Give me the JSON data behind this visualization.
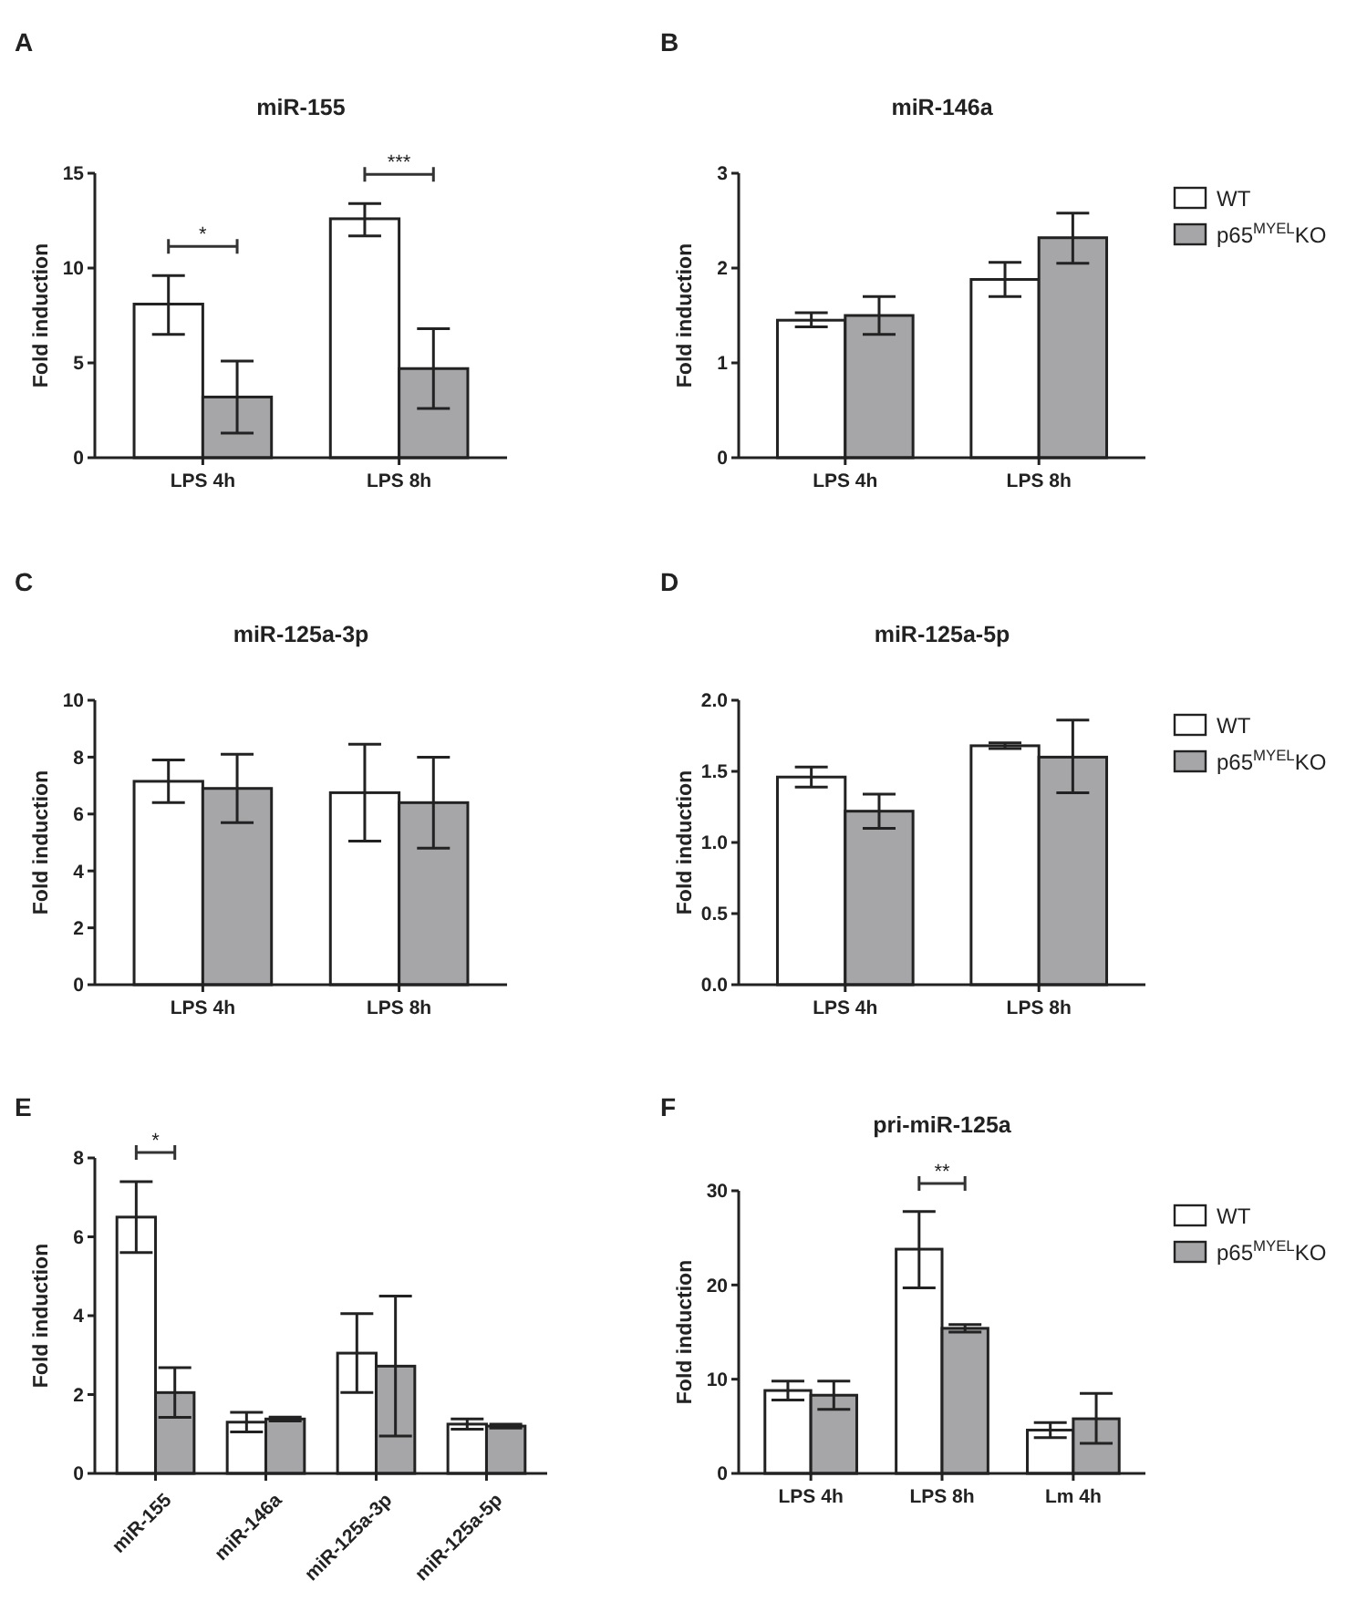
{
  "chart_data": [
    {
      "type": "bar",
      "title": "miR-155",
      "ylabel": "Fold induction",
      "categories": [
        "LPS 4h",
        "LPS 8h"
      ],
      "ylim": [
        0,
        15
      ],
      "yticks": [
        0,
        5,
        10,
        15
      ],
      "legend": false,
      "series": [
        {
          "color": "#ffffff",
          "values": [
            8.1,
            12.6
          ],
          "errors": [
            [
              6.5,
              9.6
            ],
            [
              11.7,
              13.4
            ]
          ]
        },
        {
          "color": "#a6a6a9",
          "values": [
            3.2,
            4.7
          ],
          "errors": [
            [
              1.3,
              5.1
            ],
            [
              2.6,
              6.8
            ]
          ]
        }
      ],
      "annotations": [
        "A",
        "*",
        "***"
      ]
    },
    {
      "type": "bar",
      "title": "miR-146a",
      "ylabel": "Fold induction",
      "categories": [
        "LPS 4h",
        "LPS 8h"
      ],
      "ylim": [
        0,
        3
      ],
      "yticks": [
        0,
        1,
        2,
        3
      ],
      "legend": "right",
      "series": [
        {
          "name": "WT",
          "color": "#ffffff",
          "values": [
            1.45,
            1.88
          ],
          "errors": [
            [
              1.38,
              1.53
            ],
            [
              1.7,
              2.06
            ]
          ]
        },
        {
          "name": "p65$^{MYEL}$KO",
          "color": "#a6a6a9",
          "values": [
            1.5,
            2.32
          ],
          "errors": [
            [
              1.3,
              1.7
            ],
            [
              2.05,
              2.58
            ]
          ]
        }
      ],
      "annotations": [
        "B"
      ]
    },
    {
      "type": "bar",
      "title": "miR-125a-3p",
      "ylabel": "Fold induction",
      "categories": [
        "LPS 4h",
        "LPS 8h"
      ],
      "ylim": [
        0,
        10
      ],
      "yticks": [
        0,
        2,
        4,
        6,
        8,
        10
      ],
      "legend": false,
      "series": [
        {
          "color": "#ffffff",
          "values": [
            7.15,
            6.75
          ],
          "errors": [
            [
              6.4,
              7.9
            ],
            [
              5.05,
              8.45
            ]
          ]
        },
        {
          "color": "#a6a6a9",
          "values": [
            6.9,
            6.4
          ],
          "errors": [
            [
              5.7,
              8.1
            ],
            [
              4.8,
              8.0
            ]
          ]
        }
      ],
      "annotations": [
        "C"
      ]
    },
    {
      "type": "bar",
      "title": "miR-125a-5p",
      "ylabel": "Fold induction",
      "categories": [
        "LPS 4h",
        "LPS 8h"
      ],
      "ylim": [
        0,
        2
      ],
      "yticks": [
        {
          "value": 0,
          "label": "0.0"
        },
        {
          "value": 0.5,
          "label": "0.5"
        },
        {
          "value": 1,
          "label": "1.0"
        },
        {
          "value": 1.5,
          "label": "1.5"
        },
        {
          "value": 2,
          "label": "2.0"
        }
      ],
      "legend": "right",
      "series": [
        {
          "name": "WT",
          "color": "#ffffff",
          "values": [
            1.46,
            1.68
          ],
          "errors": [
            [
              1.39,
              1.53
            ],
            [
              1.66,
              1.7
            ]
          ]
        },
        {
          "name": "p65$^{MYEL}$KO",
          "color": "#a6a6a9",
          "values": [
            1.22,
            1.6
          ],
          "errors": [
            [
              1.1,
              1.34
            ],
            [
              1.35,
              1.86
            ]
          ]
        }
      ],
      "annotations": [
        "D"
      ]
    },
    {
      "type": "bar",
      "ylabel": "Fold induction",
      "categories": [
        "miR-155",
        "miR-146a",
        "miR-125a-3p",
        "miR-125a-5p"
      ],
      "ylim": [
        0,
        8
      ],
      "yticks": [
        0,
        2,
        4,
        6,
        8
      ],
      "legend": false,
      "series": [
        {
          "color": "#ffffff",
          "values": [
            6.5,
            1.3,
            3.05,
            1.25
          ],
          "errors": [
            [
              5.6,
              7.4
            ],
            [
              1.05,
              1.55
            ],
            [
              2.05,
              4.05
            ],
            [
              1.12,
              1.38
            ]
          ]
        },
        {
          "color": "#a6a6a9",
          "values": [
            2.05,
            1.38,
            2.72,
            1.2
          ],
          "errors": [
            [
              1.42,
              2.68
            ],
            [
              1.33,
              1.43
            ],
            [
              0.95,
              4.5
            ],
            [
              1.15,
              1.25
            ]
          ]
        }
      ],
      "annotations": [
        "E",
        "*"
      ]
    },
    {
      "type": "bar",
      "title": "pri-miR-125a",
      "ylabel": "Fold induction",
      "categories": [
        "LPS 4h",
        "LPS 8h",
        "Lm 4h"
      ],
      "ylim": [
        0,
        30
      ],
      "yticks": [
        0,
        10,
        20,
        30
      ],
      "legend": "right",
      "series": [
        {
          "name": "WT",
          "color": "#ffffff",
          "values": [
            8.8,
            23.8,
            4.6
          ],
          "errors": [
            [
              7.8,
              9.8
            ],
            [
              19.7,
              27.8
            ],
            [
              3.8,
              5.4
            ]
          ]
        },
        {
          "name": "p65$^{MYEL}$KO",
          "color": "#a6a6a9",
          "values": [
            8.3,
            15.4,
            5.8
          ],
          "errors": [
            [
              6.8,
              9.8
            ],
            [
              15.0,
              15.8
            ],
            [
              3.2,
              8.5
            ]
          ]
        }
      ],
      "annotations": [
        "F",
        "**"
      ]
    }
  ]
}
